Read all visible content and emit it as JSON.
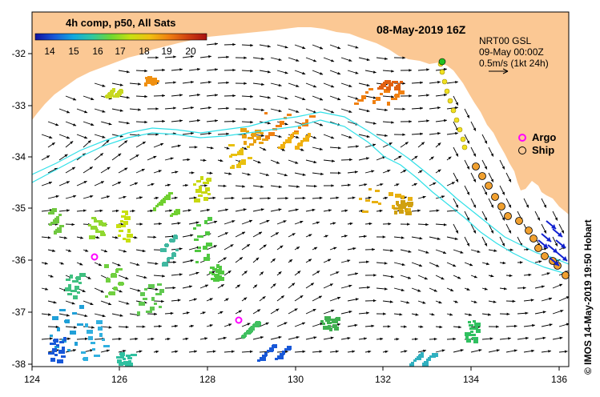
{
  "map": {
    "date_title": "08-May-2019 16Z",
    "colorbar": {
      "title": "4h comp, p50, All Sats",
      "ticks": [
        "14",
        "15",
        "16",
        "17",
        "18",
        "19",
        "20"
      ],
      "colors": [
        "#1010a0",
        "#1858d8",
        "#10a8e0",
        "#30c8a0",
        "#70d830",
        "#c8e010",
        "#f0c010",
        "#f08010",
        "#d04010",
        "#a81010"
      ]
    },
    "current_info": {
      "model_line": "NRT00 GSL",
      "time_line": "09-May 00:00Z",
      "scale_line": "0.5m/s (1kt 24h)"
    },
    "legend": {
      "argo_label": "Argo",
      "ship_label": "Ship",
      "argo_color": "#ff00ff",
      "ship_color": "#f0a030"
    },
    "credit": "© IMOS 14-May-2019 19:50 Hobart",
    "x_ticks": [
      "124",
      "126",
      "128",
      "130",
      "132",
      "134",
      "136"
    ],
    "y_ticks": [
      "-32",
      "-33",
      "-34",
      "-35",
      "-36",
      "-37",
      "-38"
    ],
    "land_color": "#fbc894",
    "contour_color": "#30e0e8"
  }
}
